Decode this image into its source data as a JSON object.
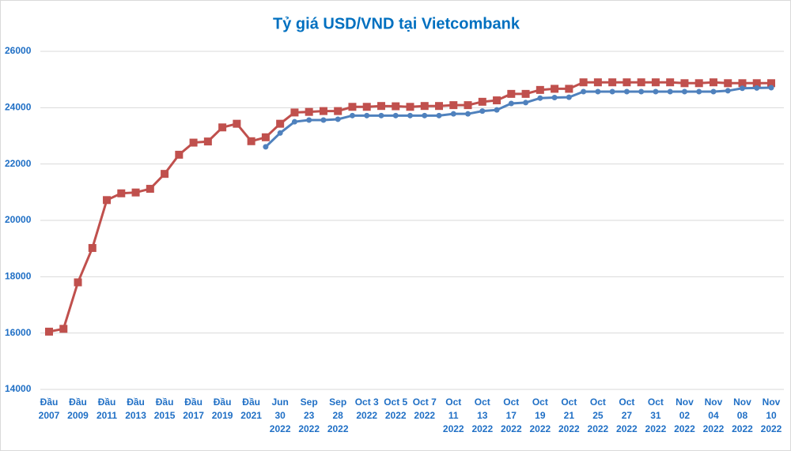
{
  "chart_data": {
    "type": "line",
    "title": "Tỷ giá USD/VND tại Vietcombank",
    "categories": [
      "Đầu\n2007",
      null,
      "Đầu\n2009",
      null,
      "Đầu\n2011",
      null,
      "Đầu\n2013",
      null,
      "Đầu\n2015",
      null,
      "Đầu\n2017",
      null,
      "Đầu\n2019",
      null,
      "Đầu\n2021",
      null,
      "Jun\n30\n2022",
      null,
      "Sep\n23\n2022",
      null,
      "Sep\n28\n2022",
      null,
      "Oct 3\n2022",
      null,
      "Oct 5\n2022",
      null,
      "Oct 7\n2022",
      null,
      "Oct\n11\n2022",
      null,
      "Oct\n13\n2022",
      null,
      "Oct\n17\n2022",
      null,
      "Oct\n19\n2022",
      null,
      "Oct\n21\n2022",
      null,
      "Oct\n25\n2022",
      null,
      "Oct\n27\n2022",
      null,
      "Oct\n31\n2022",
      null,
      "Nov\n02\n2022",
      null,
      "Nov\n04\n2022",
      null,
      "Nov\n08\n2022",
      null,
      "Nov\n10\n2022"
    ],
    "series": [
      {
        "color": "#c0504d",
        "marker": "square",
        "values": [
          16050,
          16150,
          17800,
          19020,
          20720,
          20960,
          20990,
          21120,
          21650,
          22330,
          22760,
          22800,
          23300,
          23430,
          22810,
          22950,
          23430,
          23830,
          23850,
          23880,
          23880,
          24030,
          24030,
          24060,
          24050,
          24030,
          24060,
          24060,
          24090,
          24090,
          24210,
          24260,
          24490,
          24490,
          24630,
          24670,
          24670,
          24900,
          24900,
          24900,
          24900,
          24900,
          24900,
          24900,
          24870,
          24870,
          24900,
          24870,
          24870,
          24870,
          24870
        ]
      },
      {
        "color": "#4f81bd",
        "marker": "circle",
        "values": [
          null,
          null,
          null,
          null,
          null,
          null,
          null,
          null,
          null,
          null,
          null,
          null,
          null,
          null,
          null,
          22610,
          23100,
          23500,
          23560,
          23560,
          23590,
          23720,
          23720,
          23720,
          23720,
          23720,
          23720,
          23720,
          23780,
          23780,
          23880,
          23920,
          24150,
          24180,
          24340,
          24360,
          24370,
          24570,
          24570,
          24570,
          24570,
          24570,
          24570,
          24570,
          24570,
          24570,
          24570,
          24600,
          24690,
          24700,
          24710
        ]
      }
    ],
    "ylim": [
      14000,
      26000
    ],
    "yticks": [
      14000,
      16000,
      18000,
      20000,
      22000,
      24000,
      26000
    ],
    "grid": true
  }
}
